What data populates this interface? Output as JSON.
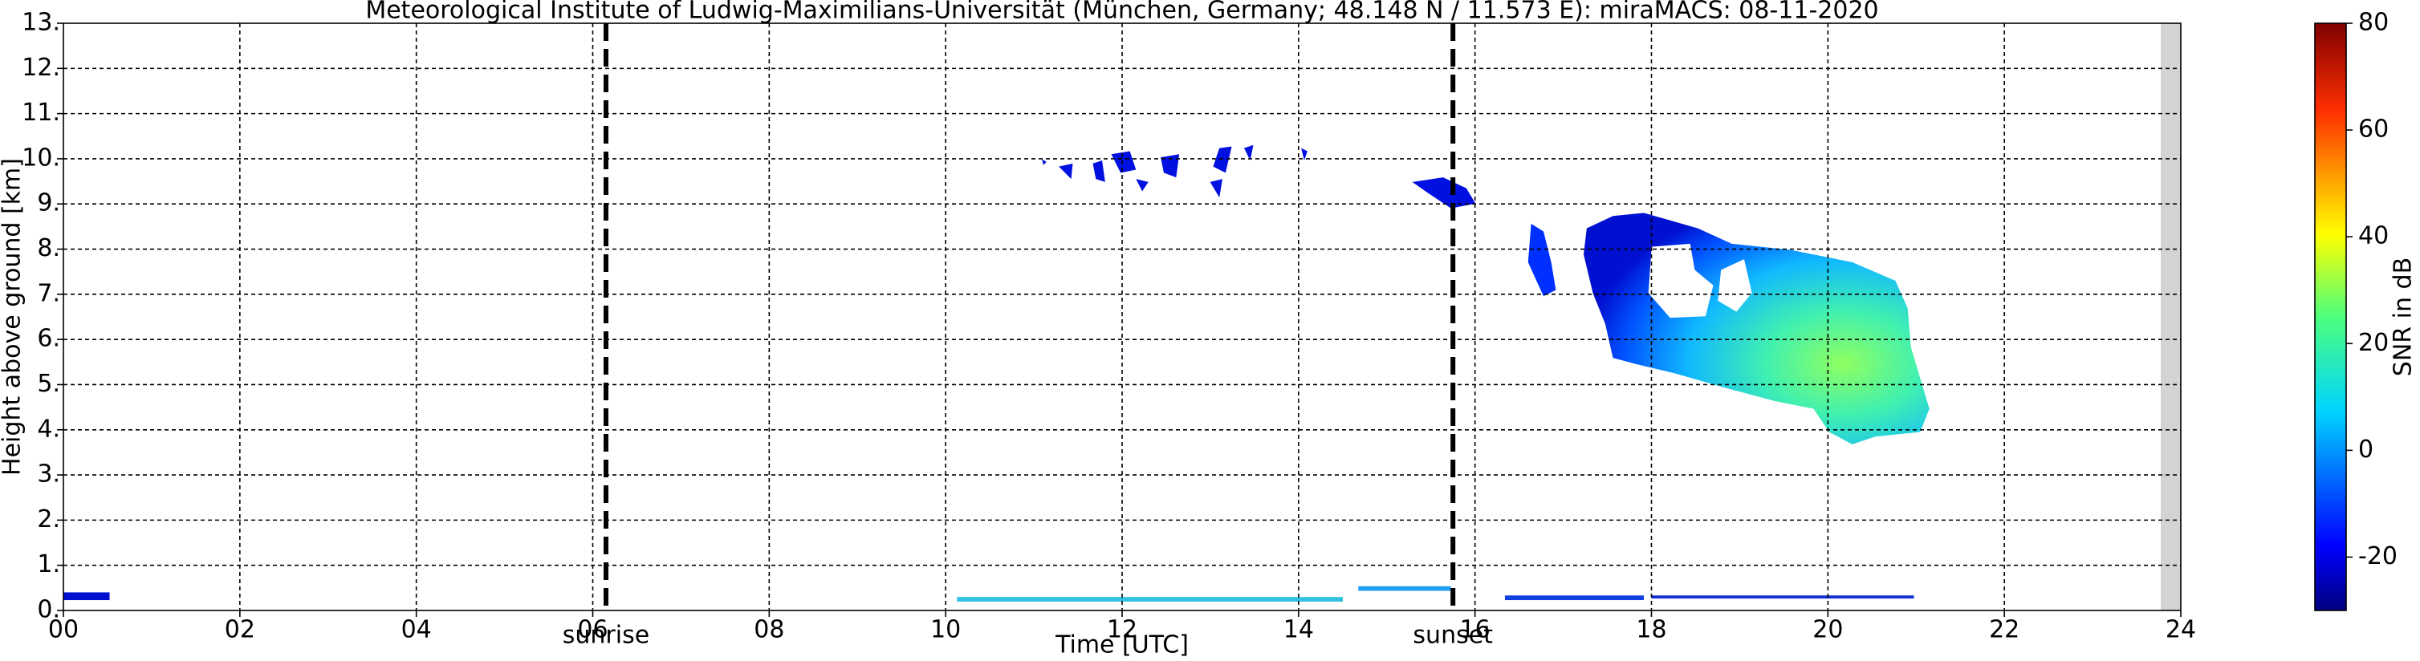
{
  "chart_data": {
    "type": "heatmap",
    "title": "Meteorological Institute of Ludwig-Maximilians-Universität (München, Germany; 48.148 N / 11.573 E):    miraMACS: 08-11-2020",
    "x_label": "Time [UTC]",
    "y_label": "Height above ground [km]",
    "xlim": [
      0,
      24
    ],
    "xticks": [
      {
        "value": 0,
        "label": "00"
      },
      {
        "value": 2,
        "label": "02"
      },
      {
        "value": 4,
        "label": "04"
      },
      {
        "value": 6,
        "label": "06"
      },
      {
        "value": 8,
        "label": "08"
      },
      {
        "value": 10,
        "label": "10"
      },
      {
        "value": 12,
        "label": "12"
      },
      {
        "value": 14,
        "label": "14"
      },
      {
        "value": 16,
        "label": "16"
      },
      {
        "value": 18,
        "label": "18"
      },
      {
        "value": 20,
        "label": "20"
      },
      {
        "value": 22,
        "label": "22"
      },
      {
        "value": 24,
        "label": "24"
      }
    ],
    "ylim": [
      0,
      13
    ],
    "yticks": [
      {
        "value": 0,
        "label": "0."
      },
      {
        "value": 1,
        "label": "1."
      },
      {
        "value": 2,
        "label": "2."
      },
      {
        "value": 3,
        "label": "3."
      },
      {
        "value": 4,
        "label": "4."
      },
      {
        "value": 5,
        "label": "5."
      },
      {
        "value": 6,
        "label": "6."
      },
      {
        "value": 7,
        "label": "7."
      },
      {
        "value": 8,
        "label": "8."
      },
      {
        "value": 9,
        "label": "9."
      },
      {
        "value": 10,
        "label": "10."
      },
      {
        "value": 11,
        "label": "11."
      },
      {
        "value": 12,
        "label": "12."
      },
      {
        "value": 13,
        "label": "13."
      }
    ],
    "grid": true,
    "annotations": [
      {
        "label": "sunrise",
        "x": 6.15
      },
      {
        "label": "sunset",
        "x": 15.75
      }
    ],
    "colorbar": {
      "label": "SNR in dB",
      "lim": [
        -30,
        80
      ],
      "ticks": [
        -20,
        0,
        20,
        40,
        60,
        80
      ]
    }
  }
}
